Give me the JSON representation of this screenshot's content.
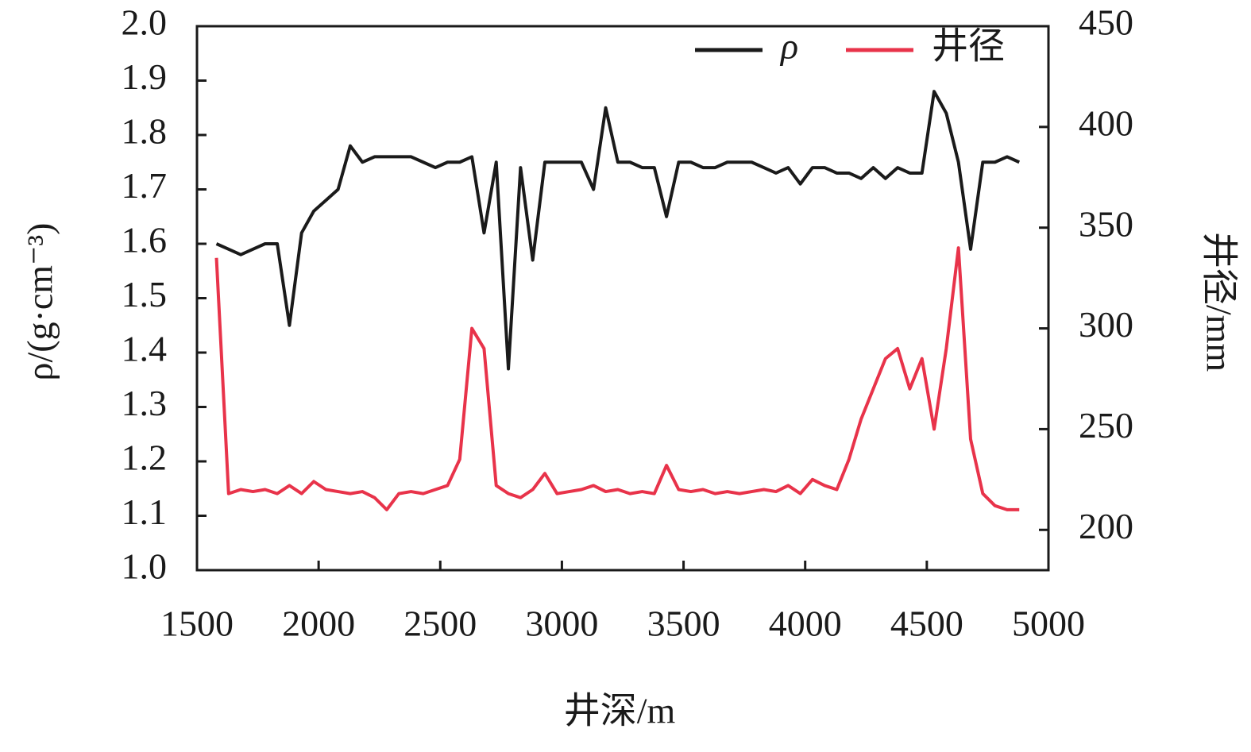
{
  "chart_data": {
    "type": "line",
    "x_label": "井深/m",
    "y_label": "ρ/(g·cm⁻³)",
    "y2_label": "井径/mm",
    "x": [
      1580,
      1630,
      1680,
      1730,
      1780,
      1830,
      1880,
      1930,
      1980,
      2030,
      2080,
      2130,
      2180,
      2230,
      2280,
      2330,
      2380,
      2430,
      2480,
      2530,
      2580,
      2630,
      2680,
      2730,
      2780,
      2830,
      2880,
      2930,
      2980,
      3030,
      3080,
      3130,
      3180,
      3230,
      3280,
      3330,
      3380,
      3430,
      3480,
      3530,
      3580,
      3630,
      3680,
      3730,
      3780,
      3830,
      3880,
      3930,
      3980,
      4030,
      4080,
      4130,
      4180,
      4230,
      4280,
      4330,
      4380,
      4430,
      4480,
      4530,
      4580,
      4630,
      4680,
      4730,
      4780,
      4830,
      4880
    ],
    "series": [
      {
        "name": "ρ",
        "color": "#1a1a1a",
        "axis": "y",
        "values": [
          1.6,
          1.59,
          1.58,
          1.59,
          1.6,
          1.6,
          1.45,
          1.62,
          1.66,
          1.68,
          1.7,
          1.78,
          1.75,
          1.76,
          1.76,
          1.76,
          1.76,
          1.75,
          1.74,
          1.75,
          1.75,
          1.76,
          1.62,
          1.75,
          1.37,
          1.74,
          1.57,
          1.75,
          1.75,
          1.75,
          1.75,
          1.7,
          1.85,
          1.75,
          1.75,
          1.74,
          1.74,
          1.65,
          1.75,
          1.75,
          1.74,
          1.74,
          1.75,
          1.75,
          1.75,
          1.74,
          1.73,
          1.74,
          1.71,
          1.74,
          1.74,
          1.73,
          1.73,
          1.72,
          1.74,
          1.72,
          1.74,
          1.73,
          1.73,
          1.88,
          1.84,
          1.75,
          1.59,
          1.75,
          1.75,
          1.76,
          1.75
        ]
      },
      {
        "name": "井径",
        "color": "#e8334a",
        "axis": "y2",
        "values": [
          335,
          218,
          220,
          219,
          220,
          218,
          222,
          218,
          224,
          220,
          219,
          218,
          219,
          216,
          210,
          218,
          219,
          218,
          220,
          222,
          235,
          300,
          290,
          222,
          218,
          216,
          220,
          228,
          218,
          219,
          220,
          222,
          219,
          220,
          218,
          219,
          218,
          232,
          220,
          219,
          220,
          218,
          219,
          218,
          219,
          220,
          219,
          222,
          218,
          225,
          222,
          220,
          235,
          255,
          270,
          285,
          290,
          270,
          285,
          250,
          290,
          340,
          245,
          218,
          212,
          210,
          210
        ]
      }
    ],
    "xlim": [
      1500,
      5000
    ],
    "xticks": [
      1500,
      2000,
      2500,
      3000,
      3500,
      4000,
      4500,
      5000
    ],
    "ylim": [
      1.0,
      2.0
    ],
    "yticks": [
      {
        "value": 1.0,
        "label": "1.0"
      },
      1.1,
      1.2,
      1.3,
      1.4,
      1.5,
      1.6,
      1.7,
      1.8,
      1.9,
      {
        "value": 2.0,
        "label": "2.0"
      }
    ],
    "y2lim": [
      180,
      450
    ],
    "y2ticks": [
      200,
      250,
      300,
      350,
      400,
      450
    ],
    "legend": "top-right",
    "grid": false
  }
}
